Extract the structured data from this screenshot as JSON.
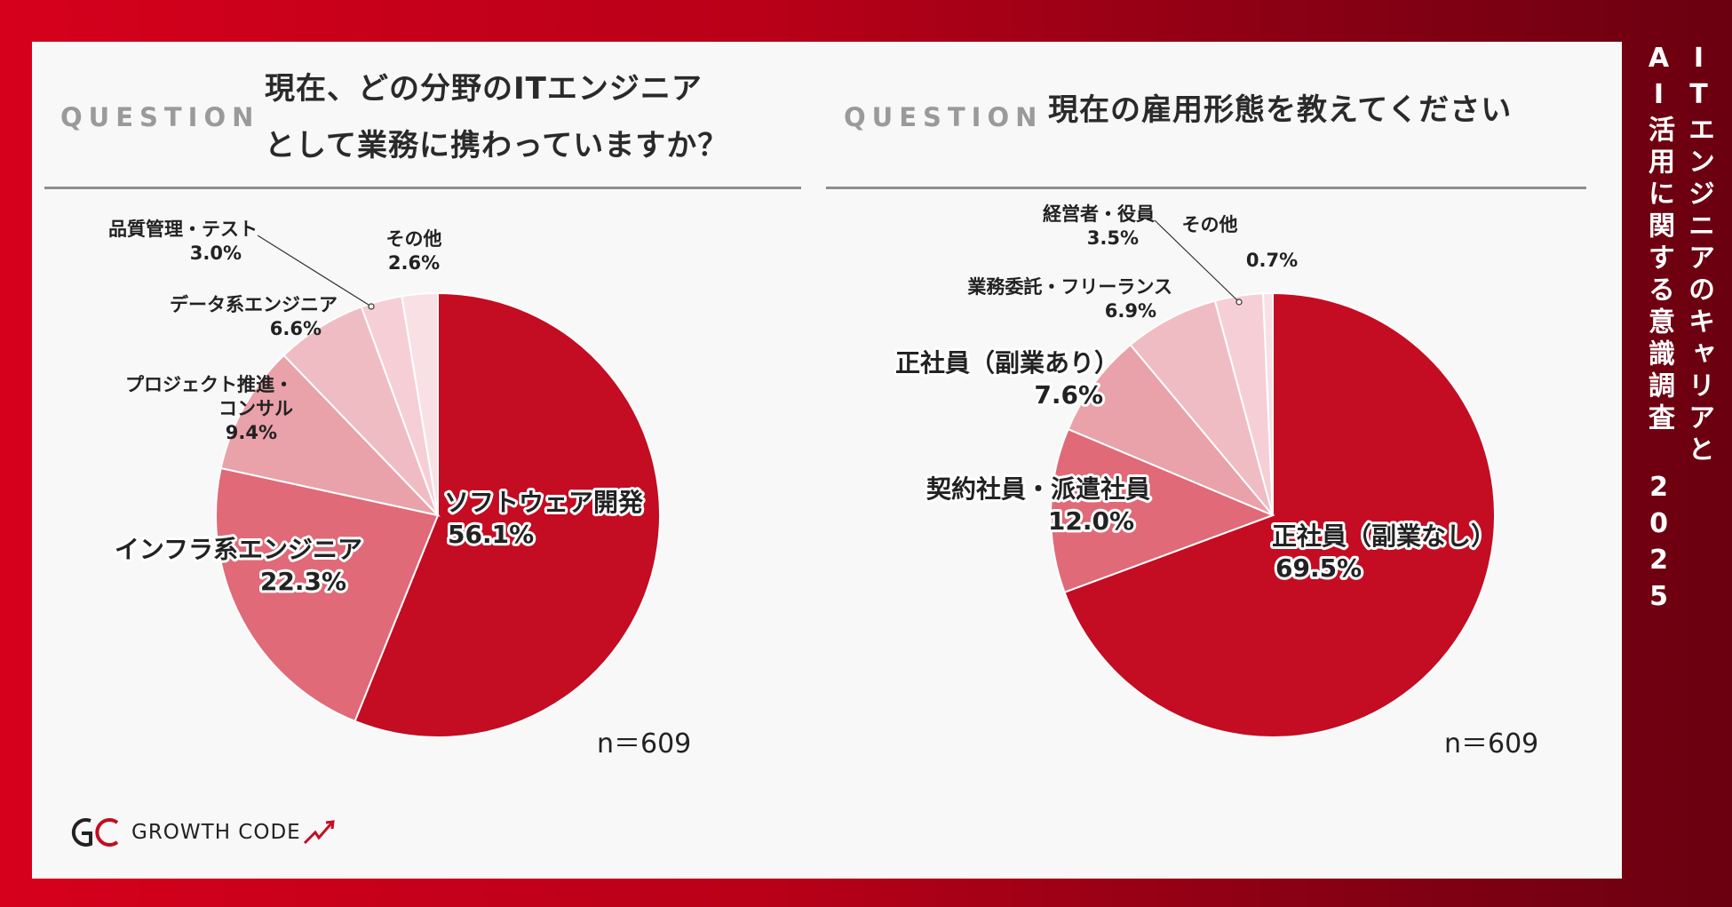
{
  "side_title_line1": "ITエンジニアのキャリアと",
  "side_title_line2": "AI活用に関する意識調査 2025",
  "brand": "GROWTH CODE",
  "left": {
    "question_label": "QUESTION",
    "question_line1": "現在、どの分野のITエンジニア",
    "question_line2": "として業務に携わっていますか？",
    "n_label": "n＝609"
  },
  "right": {
    "question_label": "QUESTION",
    "question_text": "現在の雇用形態を教えてください",
    "n_label": "n＝609"
  },
  "chart_data": [
    {
      "type": "pie",
      "series": [
        {
          "label": [
            "ソフトウェア開発"
          ],
          "value": 56.1,
          "value_label": "56.1%",
          "color": "#c40c22"
        },
        {
          "label": [
            "インフラ系エンジニア"
          ],
          "value": 22.3,
          "value_label": "22.3%",
          "color": "#e06a78"
        },
        {
          "label": [
            "プロジェクト推進・",
            "コンサル"
          ],
          "value": 9.4,
          "value_label": "9.4%",
          "color": "#e9a1aa"
        },
        {
          "label": [
            "データ系エンジニア"
          ],
          "value": 6.6,
          "value_label": "6.6%",
          "color": "#f0bcc3"
        },
        {
          "label": [
            "品質管理・テスト"
          ],
          "value": 3.0,
          "value_label": "3.0%",
          "color": "#f5cfd5"
        },
        {
          "label": [
            "その他"
          ],
          "value": 2.6,
          "value_label": "2.6%",
          "color": "#f8e0e4"
        }
      ]
    },
    {
      "type": "pie",
      "series": [
        {
          "label": [
            "正社員（副業なし）"
          ],
          "value": 69.5,
          "value_label": "69.5%",
          "color": "#c40c22"
        },
        {
          "label": [
            "契約社員・派遣社員"
          ],
          "value": 12.0,
          "value_label": "12.0%",
          "color": "#e06a78"
        },
        {
          "label": [
            "正社員（副業あり）"
          ],
          "value": 7.6,
          "value_label": "7.6%",
          "color": "#e9a1aa"
        },
        {
          "label": [
            "業務委託・フリーランス"
          ],
          "value": 6.9,
          "value_label": "6.9%",
          "color": "#f0bcc3"
        },
        {
          "label": [
            "経営者・役員"
          ],
          "value": 3.5,
          "value_label": "3.5%",
          "color": "#f5cfd5"
        },
        {
          "label": [
            "その他"
          ],
          "value": 0.7,
          "value_label": "0.7%",
          "color": "#f8e0e4"
        }
      ]
    }
  ]
}
